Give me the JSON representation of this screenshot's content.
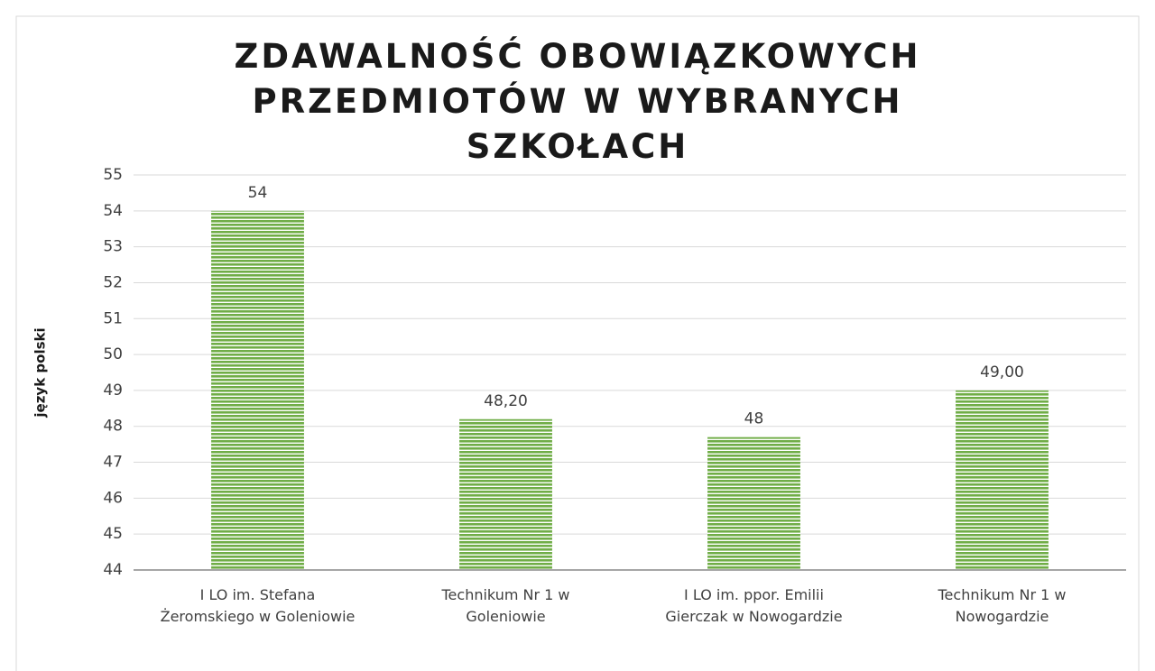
{
  "chart_data": {
    "type": "bar",
    "title": "ZDAWALNOŚĆ OBOWIĄZKOWYCH\nPRZEDMIOTÓW W WYBRANYCH\nSZKOŁACH",
    "y_axis_label": "język polski",
    "categories": [
      "I LO im. Stefana\nŻeromskiego w Goleniowie",
      "Technikum Nr 1 w\nGoleniowie",
      "I LO im. ppor. Emilii\nGierczak w Nowogardzie",
      "Technikum Nr 1 w\nNowogardzie"
    ],
    "values": [
      54,
      48.2,
      47.7,
      49
    ],
    "value_labels": [
      "54",
      "48,20",
      "48",
      "49,00"
    ],
    "color": "#70ad47",
    "ylim": [
      44,
      55
    ],
    "yticks": [
      44,
      45,
      46,
      47,
      48,
      49,
      50,
      51,
      52,
      53,
      54,
      55
    ],
    "grid": true
  }
}
